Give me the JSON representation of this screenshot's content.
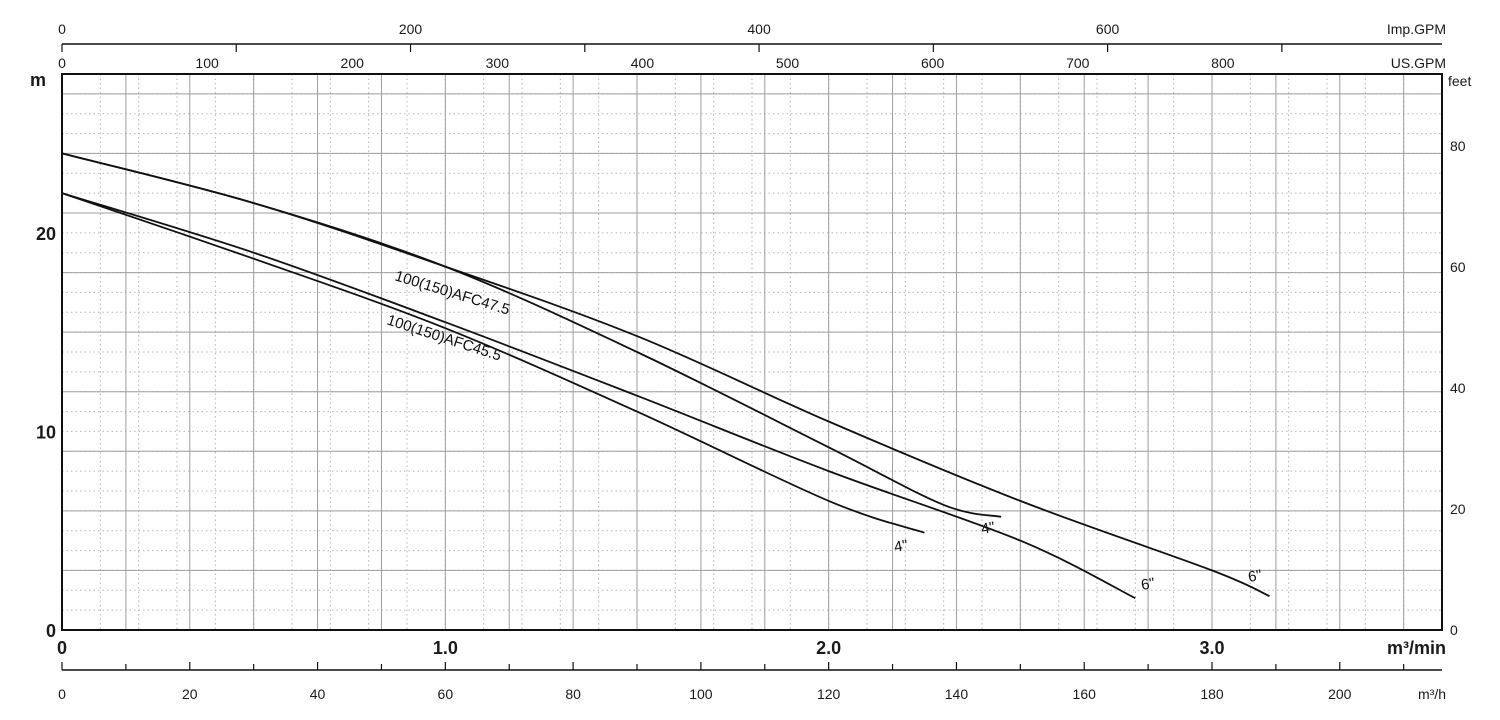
{
  "chart_data": {
    "type": "line",
    "title": "",
    "x_axis_bottom": {
      "label": "m³/min",
      "range": [
        0,
        3.6
      ],
      "ticks": [
        "0",
        "1.0",
        "2.0",
        "3.0"
      ],
      "tick_values": [
        0,
        1.0,
        2.0,
        3.0
      ]
    },
    "x_axis_m3h": {
      "label": "m³/h",
      "ticks": [
        "0",
        "20",
        "40",
        "60",
        "80",
        "100",
        "120",
        "140",
        "160",
        "180",
        "200"
      ],
      "tick_values": [
        0,
        20,
        40,
        60,
        80,
        100,
        120,
        140,
        160,
        180,
        200
      ]
    },
    "x_axis_us_gpm": {
      "label": "US.GPM",
      "ticks": [
        "0",
        "100",
        "200",
        "300",
        "400",
        "500",
        "600",
        "700",
        "800"
      ],
      "tick_values": [
        0,
        100,
        200,
        300,
        400,
        500,
        600,
        700,
        800
      ]
    },
    "x_axis_imp_gpm": {
      "label": "Imp.GPM",
      "ticks": [
        "0",
        "200",
        "400",
        "600"
      ],
      "tick_values": [
        0,
        200,
        400,
        600
      ]
    },
    "y_axis_left": {
      "label": "m",
      "range": [
        0,
        28
      ],
      "ticks": [
        "0",
        "10",
        "20"
      ],
      "tick_values": [
        0,
        10,
        20
      ]
    },
    "y_axis_right": {
      "label": "feet",
      "ticks": [
        "0",
        "20",
        "40",
        "60",
        "80"
      ],
      "tick_values": [
        0,
        20,
        40,
        60,
        80
      ]
    },
    "grid": true,
    "series": [
      {
        "name": "100(150)AFC47.5",
        "variant_label": "6\"",
        "x": [
          0,
          0.5,
          1.0,
          1.5,
          2.0,
          2.5,
          3.0,
          3.15
        ],
        "y": [
          24.0,
          21.5,
          18.3,
          14.8,
          10.5,
          6.5,
          3.0,
          1.7
        ]
      },
      {
        "name": "100(150)AFC47.5",
        "variant_label": "4\"",
        "x": [
          0,
          0.5,
          1.0,
          1.5,
          2.0,
          2.3,
          2.45
        ],
        "y": [
          24.0,
          21.5,
          18.3,
          14.0,
          9.2,
          6.3,
          5.7
        ]
      },
      {
        "name": "100(150)AFC45.5",
        "variant_label": "6\"",
        "x": [
          0,
          0.5,
          1.0,
          1.5,
          2.0,
          2.5,
          2.8
        ],
        "y": [
          22.0,
          19.0,
          15.5,
          11.8,
          8.0,
          4.5,
          1.6
        ]
      },
      {
        "name": "100(150)AFC45.5",
        "variant_label": "4\"",
        "x": [
          0,
          0.5,
          1.0,
          1.5,
          2.0,
          2.25
        ],
        "y": [
          22.0,
          18.7,
          15.2,
          11.0,
          6.5,
          4.9
        ]
      }
    ],
    "annotations": [
      "100(150)AFC47.5",
      "100(150)AFC45.5",
      "4\"",
      "4\"",
      "6\"",
      "6\""
    ]
  }
}
